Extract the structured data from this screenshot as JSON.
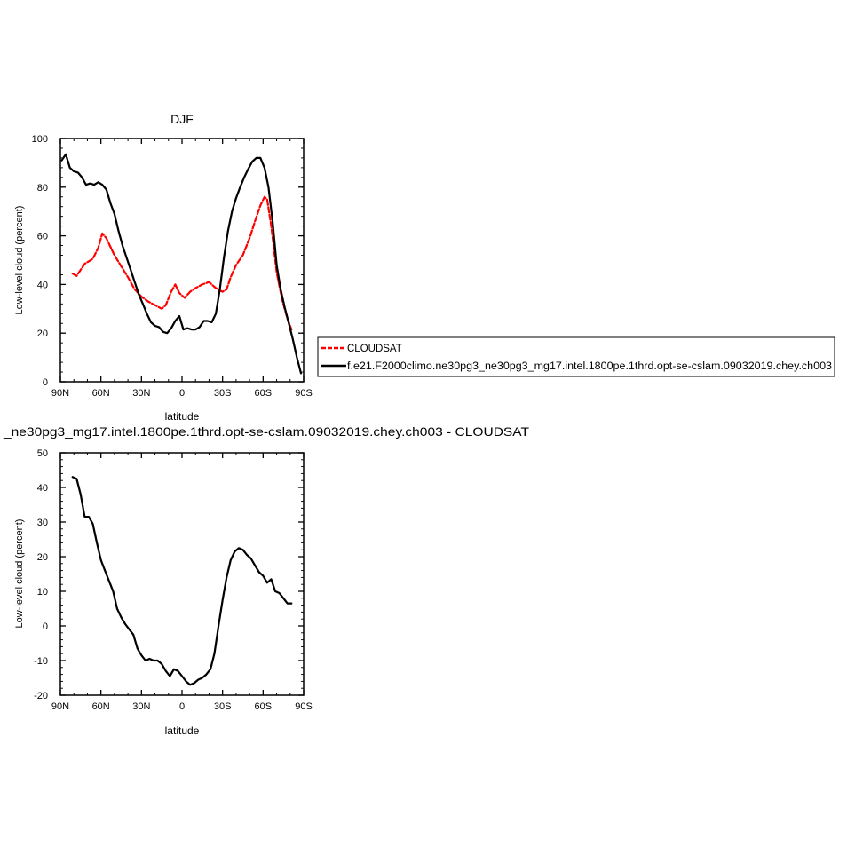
{
  "chart_data": [
    {
      "type": "line",
      "title": "DJF",
      "xlabel": "latitude",
      "ylabel": "Low-level cloud (percent)",
      "xlim": [
        -90,
        90
      ],
      "ylim": [
        0,
        100
      ],
      "x_ticks": [
        -90,
        -60,
        -30,
        0,
        30,
        60,
        90
      ],
      "x_tick_labels": [
        "90N",
        "60N",
        "30N",
        "0",
        "30S",
        "60S",
        "90S"
      ],
      "y_ticks": [
        0,
        20,
        40,
        60,
        80,
        100
      ],
      "y_tick_labels": [
        "0",
        "20",
        "40",
        "60",
        "80",
        "100"
      ],
      "series": [
        {
          "name": "CLOUDSAT",
          "color": "#ff0000",
          "dash": true,
          "x": [
            -81,
            -78,
            -72,
            -66,
            -62,
            -59,
            -56,
            -50,
            -45,
            -40,
            -35,
            -30,
            -25,
            -20,
            -15,
            -12,
            -8,
            -5,
            -2,
            2,
            6,
            10,
            15,
            20,
            25,
            30,
            33,
            36,
            40,
            45,
            50,
            54,
            58,
            61,
            63,
            66,
            70,
            74,
            78,
            81
          ],
          "y": [
            44.5,
            43.5,
            48.5,
            50.5,
            55,
            61,
            59,
            52,
            47.5,
            43,
            38,
            35,
            33,
            31.5,
            30,
            31.5,
            37,
            40,
            36.5,
            34.5,
            37,
            38.5,
            40,
            41,
            38.5,
            37,
            38,
            43,
            48,
            52,
            59,
            66,
            72.5,
            76,
            75,
            64,
            45,
            34,
            26,
            21.5
          ]
        },
        {
          "name": "f.e21.F2000climo.ne30pg3_ne30pg3_mg17.intel.1800pe.1thrd.opt-se-cslam.09032019.chey.ch003",
          "color": "#000000",
          "dash": false,
          "x": [
            -89,
            -86,
            -83,
            -80,
            -77,
            -74,
            -71,
            -68,
            -65,
            -62,
            -59,
            -56,
            -53,
            -50,
            -47,
            -44,
            -41,
            -38,
            -35,
            -32,
            -29,
            -26,
            -23,
            -20,
            -17,
            -14,
            -11,
            -8,
            -5,
            -2,
            1,
            4,
            7,
            10,
            13,
            16,
            19,
            22,
            25,
            28,
            31,
            34,
            37,
            40,
            43,
            46,
            49,
            52,
            55,
            58,
            61,
            64,
            67,
            70,
            73,
            76,
            79,
            82,
            85,
            88
          ],
          "y": [
            91,
            93.5,
            88,
            86.5,
            86,
            84,
            81,
            81.5,
            81,
            82,
            81,
            79,
            73.5,
            69,
            62,
            56,
            51,
            46,
            41,
            36,
            32,
            28,
            24.5,
            23,
            22.5,
            20.5,
            20,
            22,
            25,
            27,
            21.5,
            22,
            21.5,
            21.5,
            22.5,
            25,
            25,
            24.5,
            28,
            38,
            51,
            62,
            70,
            75.5,
            80,
            84,
            87.5,
            90.5,
            92,
            92,
            88,
            80,
            66,
            48,
            38,
            30.5,
            24,
            17.5,
            10,
            3.5
          ]
        }
      ],
      "legend": "right"
    },
    {
      "type": "line",
      "title": "_ne30pg3_mg17.intel.1800pe.1thrd.opt-se-cslam.09032019.chey.ch003 - CLOUDSAT",
      "xlabel": "latitude",
      "ylabel": "Low-level cloud (percent)",
      "xlim": [
        -90,
        90
      ],
      "ylim": [
        -20,
        50
      ],
      "x_ticks": [
        -90,
        -60,
        -30,
        0,
        30,
        60,
        90
      ],
      "x_tick_labels": [
        "90N",
        "60N",
        "30N",
        "0",
        "30S",
        "60S",
        "90S"
      ],
      "y_ticks": [
        -20,
        -10,
        0,
        10,
        20,
        30,
        40,
        50
      ],
      "y_tick_labels": [
        "-20",
        "-10",
        "0",
        "10",
        "20",
        "30",
        "40",
        "50"
      ],
      "series": [
        {
          "color": "#000000",
          "x": [
            -81,
            -78,
            -75,
            -72,
            -69,
            -66,
            -63,
            -60,
            -57,
            -54,
            -51,
            -48,
            -45,
            -42,
            -39,
            -36,
            -33,
            -30,
            -27,
            -24,
            -21,
            -18,
            -15,
            -12,
            -9,
            -6,
            -3,
            0,
            3,
            6,
            9,
            12,
            15,
            18,
            21,
            24,
            27,
            30,
            33,
            36,
            39,
            42,
            45,
            48,
            51,
            54,
            57,
            60,
            63,
            66,
            69,
            72,
            75,
            78,
            81
          ],
          "y": [
            43,
            42.5,
            38,
            31.5,
            31.5,
            29.5,
            24,
            19,
            16,
            13,
            10,
            5,
            2.5,
            0.5,
            -1,
            -2.5,
            -6.5,
            -8.5,
            -10,
            -9.5,
            -10,
            -10,
            -11,
            -13,
            -14.5,
            -12.5,
            -13,
            -14.5,
            -16,
            -17,
            -16.5,
            -15.5,
            -15,
            -14,
            -12.5,
            -8,
            0,
            7.5,
            14,
            19,
            21.5,
            22.5,
            22,
            20.5,
            19.5,
            17.5,
            15.5,
            14.5,
            12.5,
            13.5,
            10,
            9.5,
            8,
            6.5,
            6.5
          ]
        }
      ]
    }
  ]
}
